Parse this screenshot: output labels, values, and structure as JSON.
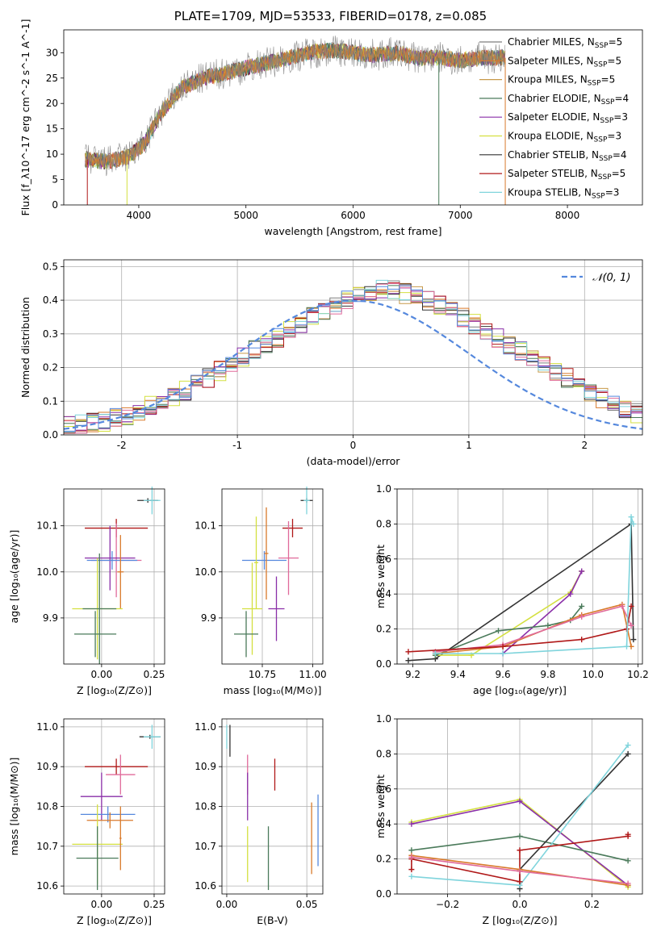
{
  "figure": {
    "title": "PLATE=1709, MJD=53533, FIBERID=0178, z=0.085"
  },
  "chart_data": [
    {
      "id": "spectrum",
      "type": "line",
      "xlabel": "wavelength [Angstrom, rest frame]",
      "ylabel": "Flux [f_λ10^-17 erg cm^-2 s^-1 A^-1]",
      "xlim": [
        3300,
        8700
      ],
      "ylim": [
        0,
        34.5
      ],
      "xticks": [
        4000,
        5000,
        6000,
        7000,
        8000
      ],
      "yticks": [
        0,
        5,
        10,
        15,
        20,
        25,
        30
      ],
      "grid": false,
      "legend_position": "right",
      "continuum_x": [
        3500,
        3700,
        3900,
        4050,
        4200,
        4400,
        4600,
        4800,
        5000,
        5200,
        5400,
        5600,
        5800,
        6000,
        6200,
        6400,
        6600,
        6800,
        7000,
        7200,
        7400
      ],
      "continuum_y": [
        9,
        8.5,
        9.5,
        12,
        18,
        23,
        25,
        26,
        27,
        28,
        29,
        30,
        30.5,
        30,
        29.5,
        30,
        29,
        29,
        28.5,
        29,
        29
      ],
      "dropouts": [
        {
          "x": 3520,
          "series": "Salpeter STELIB"
        },
        {
          "x": 3890,
          "series": "Kroupa ELODIE"
        },
        {
          "x": 6800,
          "series": "Chabrier ELODIE"
        },
        {
          "x": 7420,
          "series": "Salpeter MILES"
        }
      ],
      "series": [
        {
          "name": "Chabrier MILES",
          "n_ssp": "5",
          "color": "#7f7f7f"
        },
        {
          "name": "Salpeter MILES",
          "n_ssp": "5",
          "color": "#d97a2b"
        },
        {
          "name": "Kroupa MILES",
          "n_ssp": "5",
          "color": "#c89a4a"
        },
        {
          "name": "Chabrier ELODIE",
          "n_ssp": "4",
          "color": "#4a7a5a"
        },
        {
          "name": "Salpeter ELODIE",
          "n_ssp": "3",
          "color": "#8a2fa8"
        },
        {
          "name": "Kroupa ELODIE",
          "n_ssp": "3",
          "color": "#d4e040"
        },
        {
          "name": "Chabrier STELIB",
          "n_ssp": "4",
          "color": "#333333"
        },
        {
          "name": "Salpeter STELIB",
          "n_ssp": "5",
          "color": "#b01818"
        },
        {
          "name": "Kroupa STELIB",
          "n_ssp": "3",
          "color": "#7fd4dc"
        }
      ]
    },
    {
      "id": "residuals",
      "type": "line",
      "xlabel": "(data-model)/error",
      "ylabel": "Normed distribution",
      "xlim": [
        -2.5,
        2.5
      ],
      "ylim": [
        0,
        0.52
      ],
      "xticks": [
        -2,
        -1,
        0,
        1,
        2
      ],
      "yticks": [
        0.0,
        0.1,
        0.2,
        0.3,
        0.4,
        0.5
      ],
      "grid": true,
      "legend_position": "top-right",
      "normal_curve": {
        "label": "𝒩(0, 1)",
        "color": "#5588dd"
      },
      "bin_width": 0.1,
      "bin_start": -2.5,
      "hist_base": [
        0.025,
        0.03,
        0.035,
        0.04,
        0.05,
        0.06,
        0.07,
        0.085,
        0.1,
        0.115,
        0.13,
        0.15,
        0.17,
        0.19,
        0.21,
        0.23,
        0.25,
        0.27,
        0.29,
        0.31,
        0.33,
        0.35,
        0.37,
        0.385,
        0.4,
        0.41,
        0.42,
        0.43,
        0.43,
        0.42,
        0.41,
        0.4,
        0.385,
        0.37,
        0.35,
        0.33,
        0.31,
        0.29,
        0.27,
        0.25,
        0.23,
        0.21,
        0.19,
        0.17,
        0.15,
        0.13,
        0.11,
        0.095,
        0.08,
        0.065
      ],
      "hist_series": [
        "#7f7f7f",
        "#d97a2b",
        "#c89a4a",
        "#4a7a5a",
        "#8a2fa8",
        "#d4e040",
        "#333333",
        "#b01818",
        "#7fd4dc",
        "#e06a9a",
        "#5588dd"
      ]
    },
    {
      "id": "age_vs_Z",
      "type": "scatter",
      "xlabel": "Z [log₁₀(Z/Z⊙)]",
      "ylabel": "age  [log₁₀(age/yr)]",
      "xlim": [
        -0.18,
        0.3
      ],
      "ylim": [
        9.8,
        10.18
      ],
      "xticks": [
        0.0,
        0.25
      ],
      "xtick_labels": [
        "0.00",
        "0.25"
      ],
      "yticks": [
        9.9,
        10.0,
        10.1
      ],
      "ytick_labels": [
        "9.9",
        "10.0",
        "10.1"
      ],
      "grid": true,
      "points": [
        {
          "x": 0.22,
          "y": 10.155,
          "xerr": 0.05,
          "yerr": 0.005,
          "color": "#333333"
        },
        {
          "x": 0.24,
          "y": 10.155,
          "xerr": 0.04,
          "yerr": 0.03,
          "color": "#7fd4dc"
        },
        {
          "x": 0.07,
          "y": 10.095,
          "xerr": 0.15,
          "yerr": 0.02,
          "color": "#b01818"
        },
        {
          "x": 0.07,
          "y": 10.025,
          "xerr": 0.12,
          "yerr": 0.08,
          "color": "#e06a9a"
        },
        {
          "x": 0.04,
          "y": 10.03,
          "xerr": 0.12,
          "yerr": 0.07,
          "color": "#8a2fa8"
        },
        {
          "x": 0.05,
          "y": 10.025,
          "xerr": 0.12,
          "yerr": 0.02,
          "color": "#5588dd"
        },
        {
          "x": 0.09,
          "y": 10.0,
          "xerr": 0.015,
          "yerr": 0.08,
          "color": "#d97a2b"
        },
        {
          "x": -0.02,
          "y": 9.92,
          "xerr": 0.12,
          "yerr": 0.11,
          "color": "#d4e040"
        },
        {
          "x": -0.01,
          "y": 9.92,
          "xerr": 0.08,
          "yerr": 0.12,
          "color": "#4a7a5a"
        },
        {
          "x": -0.03,
          "y": 9.865,
          "xerr": 0.1,
          "yerr": 0.05,
          "color": "#4a7a5a"
        }
      ]
    },
    {
      "id": "age_vs_mass",
      "type": "scatter",
      "xlabel": "mass [log₁₀(M/M⊙)]",
      "xlim": [
        10.55,
        11.05
      ],
      "ylim": [
        9.8,
        10.18
      ],
      "xticks": [
        10.75,
        11.0
      ],
      "xtick_labels": [
        "10.75",
        "11.00"
      ],
      "yticks": [
        9.9,
        10.0,
        10.1
      ],
      "ytick_labels": [
        "9.9",
        "10.0",
        "10.1"
      ],
      "grid": true,
      "points": [
        {
          "x": 10.97,
          "y": 10.155,
          "xerr": 0.03,
          "yerr": 0.005,
          "color": "#333333"
        },
        {
          "x": 10.97,
          "y": 10.155,
          "xerr": 0.015,
          "yerr": 0.03,
          "color": "#7fd4dc"
        },
        {
          "x": 10.9,
          "y": 10.095,
          "xerr": 0.05,
          "yerr": 0.02,
          "color": "#b01818"
        },
        {
          "x": 10.88,
          "y": 10.03,
          "xerr": 0.05,
          "yerr": 0.08,
          "color": "#e06a9a"
        },
        {
          "x": 10.76,
          "y": 10.025,
          "xerr": 0.11,
          "yerr": 0.02,
          "color": "#5588dd"
        },
        {
          "x": 10.77,
          "y": 10.04,
          "xerr": 0.01,
          "yerr": 0.1,
          "color": "#d97a2b"
        },
        {
          "x": 10.72,
          "y": 10.02,
          "xerr": 0.01,
          "yerr": 0.1,
          "color": "#d4e040"
        },
        {
          "x": 10.82,
          "y": 9.92,
          "xerr": 0.04,
          "yerr": 0.07,
          "color": "#8a2fa8"
        },
        {
          "x": 10.7,
          "y": 9.92,
          "xerr": 0.05,
          "yerr": 0.1,
          "color": "#d4e040"
        },
        {
          "x": 10.67,
          "y": 9.865,
          "xerr": 0.06,
          "yerr": 0.05,
          "color": "#4a7a5a"
        }
      ]
    },
    {
      "id": "weight_vs_age",
      "type": "line",
      "xlabel": "age  [log₁₀(age/yr)]",
      "ylabel": "mass weight",
      "xlim": [
        9.13,
        10.22
      ],
      "ylim": [
        0,
        1
      ],
      "xticks": [
        9.2,
        9.4,
        9.6,
        9.8,
        10.0,
        10.2
      ],
      "xtick_labels": [
        "9.2",
        "9.4",
        "9.6",
        "9.8",
        "10.0",
        "10.2"
      ],
      "yticks": [
        0.0,
        0.2,
        0.4,
        0.6,
        0.8,
        1.0
      ],
      "ytick_labels": [
        "0.0",
        "0.2",
        "0.4",
        "0.6",
        "0.8",
        "1.0"
      ],
      "grid": true,
      "series": [
        {
          "color": "#333333",
          "x": [
            9.18,
            9.3,
            10.17,
            10.18
          ],
          "y": [
            0.02,
            0.03,
            0.8,
            0.14
          ]
        },
        {
          "color": "#d4e040",
          "x": [
            9.3,
            9.46,
            9.9,
            9.95
          ],
          "y": [
            0.05,
            0.05,
            0.41,
            0.53
          ]
        },
        {
          "color": "#8a2fa8",
          "x": [
            9.6,
            9.9,
            9.95
          ],
          "y": [
            0.06,
            0.4,
            0.53
          ]
        },
        {
          "color": "#4a7a5a",
          "x": [
            9.3,
            9.58,
            9.8,
            9.9,
            9.95
          ],
          "y": [
            0.05,
            0.19,
            0.22,
            0.25,
            0.33
          ]
        },
        {
          "color": "#d97a2b",
          "x": [
            9.3,
            9.6,
            9.95,
            10.13,
            10.17
          ],
          "y": [
            0.06,
            0.1,
            0.28,
            0.34,
            0.1
          ]
        },
        {
          "color": "#e06a9a",
          "x": [
            9.3,
            9.6,
            9.95,
            10.13,
            10.17
          ],
          "y": [
            0.07,
            0.11,
            0.27,
            0.33,
            0.22
          ]
        },
        {
          "color": "#b01818",
          "x": [
            9.18,
            9.6,
            9.95,
            10.15,
            10.17
          ],
          "y": [
            0.07,
            0.1,
            0.14,
            0.2,
            0.33
          ]
        },
        {
          "color": "#7fd4dc",
          "x": [
            9.3,
            9.6,
            10.15,
            10.17,
            10.18
          ],
          "y": [
            0.06,
            0.06,
            0.1,
            0.84,
            0.8
          ]
        }
      ]
    },
    {
      "id": "mass_vs_Z",
      "type": "scatter",
      "xlabel": "Z [log₁₀(Z/Z⊙)]",
      "ylabel": "mass [log₁₀(M/M⊙)]",
      "xlim": [
        -0.18,
        0.3
      ],
      "ylim": [
        10.58,
        11.02
      ],
      "xticks": [
        0.0,
        0.25
      ],
      "xtick_labels": [
        "0.00",
        "0.25"
      ],
      "yticks": [
        10.6,
        10.7,
        10.8,
        10.9,
        11.0
      ],
      "ytick_labels": [
        "10.6",
        "10.7",
        "10.8",
        "10.9",
        "11.0"
      ],
      "grid": true,
      "points": [
        {
          "x": 0.23,
          "y": 10.975,
          "xerr": 0.05,
          "yerr": 0.005,
          "color": "#333333"
        },
        {
          "x": 0.24,
          "y": 10.975,
          "xerr": 0.04,
          "yerr": 0.03,
          "color": "#7fd4dc"
        },
        {
          "x": 0.07,
          "y": 10.9,
          "xerr": 0.15,
          "yerr": 0.02,
          "color": "#b01818"
        },
        {
          "x": 0.09,
          "y": 10.88,
          "xerr": 0.07,
          "yerr": 0.05,
          "color": "#e06a9a"
        },
        {
          "x": 0.0,
          "y": 10.825,
          "xerr": 0.1,
          "yerr": 0.06,
          "color": "#8a2fa8"
        },
        {
          "x": 0.03,
          "y": 10.78,
          "xerr": 0.13,
          "yerr": 0.02,
          "color": "#5588dd"
        },
        {
          "x": 0.04,
          "y": 10.765,
          "xerr": 0.11,
          "yerr": 0.02,
          "color": "#d97a2b"
        },
        {
          "x": -0.02,
          "y": 10.705,
          "xerr": 0.12,
          "yerr": 0.1,
          "color": "#d4e040"
        },
        {
          "x": -0.02,
          "y": 10.67,
          "xerr": 0.1,
          "yerr": 0.08,
          "color": "#4a7a5a"
        },
        {
          "x": 0.09,
          "y": 10.72,
          "xerr": 0.005,
          "yerr": 0.08,
          "color": "#d97a2b"
        }
      ]
    },
    {
      "id": "mass_vs_ebv",
      "type": "scatter",
      "xlabel": "E(B-V)",
      "xlim": [
        -0.003,
        0.06
      ],
      "ylim": [
        10.58,
        11.02
      ],
      "xticks": [
        0.0,
        0.05
      ],
      "xtick_labels": [
        "0.00",
        "0.05"
      ],
      "yticks": [
        10.6,
        10.7,
        10.8,
        10.9,
        11.0
      ],
      "ytick_labels": [
        "10.6",
        "10.7",
        "10.8",
        "10.9",
        "11.0"
      ],
      "grid": true,
      "points": [
        {
          "x": 0.0,
          "y": 10.975,
          "xerr": 0,
          "yerr": 0.03,
          "color": "#7fd4dc"
        },
        {
          "x": 0.002,
          "y": 10.965,
          "xerr": 0,
          "yerr": 0.04,
          "color": "#333333"
        },
        {
          "x": 0.013,
          "y": 10.88,
          "xerr": 0,
          "yerr": 0.05,
          "color": "#e06a9a"
        },
        {
          "x": 0.013,
          "y": 10.825,
          "xerr": 0,
          "yerr": 0.06,
          "color": "#8a2fa8"
        },
        {
          "x": 0.013,
          "y": 10.68,
          "xerr": 0,
          "yerr": 0.07,
          "color": "#d4e040"
        },
        {
          "x": 0.026,
          "y": 10.67,
          "xerr": 0,
          "yerr": 0.08,
          "color": "#4a7a5a"
        },
        {
          "x": 0.03,
          "y": 10.88,
          "xerr": 0,
          "yerr": 0.04,
          "color": "#b01818"
        },
        {
          "x": 0.053,
          "y": 10.72,
          "xerr": 0,
          "yerr": 0.09,
          "color": "#d97a2b"
        },
        {
          "x": 0.057,
          "y": 10.74,
          "xerr": 0,
          "yerr": 0.09,
          "color": "#5588dd"
        }
      ]
    },
    {
      "id": "weight_vs_Z",
      "type": "line",
      "xlabel": "Z [log₁₀(Z/Z⊙)]",
      "ylabel": "mass weight",
      "xlim": [
        -0.34,
        0.34
      ],
      "ylim": [
        0,
        1
      ],
      "xticks": [
        -0.2,
        0.0,
        0.2
      ],
      "xtick_labels": [
        "−0.2",
        "0.0",
        "0.2"
      ],
      "yticks": [
        0.0,
        0.2,
        0.4,
        0.6,
        0.8,
        1.0
      ],
      "ytick_labels": [
        "0.0",
        "0.2",
        "0.4",
        "0.6",
        "0.8",
        "1.0"
      ],
      "grid": true,
      "series": [
        {
          "color": "#d4e040",
          "x": [
            -0.3,
            0.0,
            0.3
          ],
          "y": [
            0.41,
            0.54,
            0.04
          ]
        },
        {
          "color": "#8a2fa8",
          "x": [
            -0.3,
            0.0,
            0.3
          ],
          "y": [
            0.4,
            0.53,
            0.05
          ]
        },
        {
          "color": "#4a7a5a",
          "x": [
            -0.3,
            0.0,
            0.3
          ],
          "y": [
            0.25,
            0.33,
            0.19
          ]
        },
        {
          "color": "#333333",
          "x": [
            0.0,
            0.0,
            0.3
          ],
          "y": [
            0.03,
            0.14,
            0.8
          ]
        },
        {
          "color": "#7fd4dc",
          "x": [
            -0.3,
            0.0,
            0.3
          ],
          "y": [
            0.1,
            0.05,
            0.85
          ]
        },
        {
          "color": "#b01818",
          "x": [
            -0.3,
            -0.3,
            0.0,
            0.0,
            0.3,
            0.3
          ],
          "y": [
            0.14,
            0.2,
            0.07,
            0.25,
            0.33,
            0.34
          ]
        },
        {
          "color": "#d97a2b",
          "x": [
            -0.3,
            0.0,
            0.3
          ],
          "y": [
            0.22,
            0.14,
            0.05
          ]
        },
        {
          "color": "#e06a9a",
          "x": [
            -0.3,
            0.0,
            0.3
          ],
          "y": [
            0.21,
            0.13,
            0.06
          ]
        }
      ]
    }
  ]
}
